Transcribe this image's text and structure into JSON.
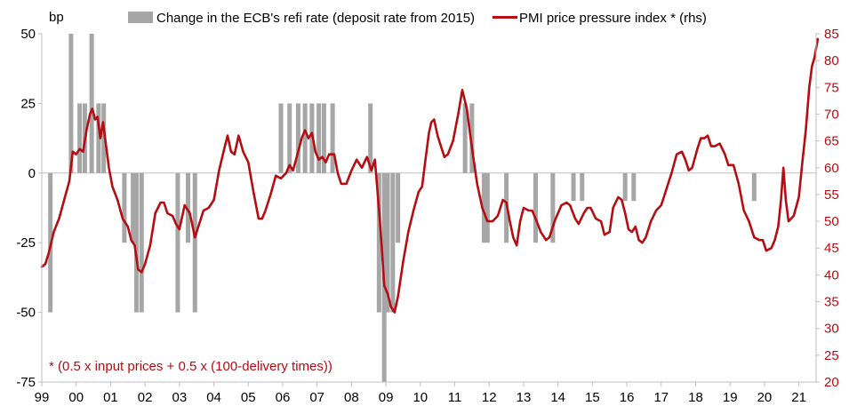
{
  "colors": {
    "bar": "#a6a6a6",
    "line": "#b50d12",
    "text": "#000000",
    "rhs_text": "#b50d12",
    "grid": "#bfbfbf"
  },
  "chart_data": {
    "type": "bar+line",
    "title": "",
    "left_axis": {
      "unit_label": "bp",
      "ylim": [
        -75,
        50
      ],
      "ticks": [
        50,
        25,
        0,
        -25,
        -50,
        -75
      ]
    },
    "right_axis": {
      "label": "(rhs)",
      "ylim": [
        20,
        85
      ],
      "ticks": [
        85,
        80,
        75,
        70,
        65,
        60,
        55,
        50,
        45,
        40,
        35,
        30,
        25,
        20
      ]
    },
    "x_axis": {
      "ticks": [
        {
          "label": "99",
          "year": 1999.0
        },
        {
          "label": "00",
          "year": 2000.0
        },
        {
          "label": "01",
          "year": 2001.0
        },
        {
          "label": "02",
          "year": 2002.0
        },
        {
          "label": "03",
          "year": 2003.0
        },
        {
          "label": "04",
          "year": 2004.0
        },
        {
          "label": "05",
          "year": 2005.0
        },
        {
          "label": "06",
          "year": 2006.0
        },
        {
          "label": "07",
          "year": 2007.0
        },
        {
          "label": "08",
          "year": 2008.0
        },
        {
          "label": "09",
          "year": 2009.0
        },
        {
          "label": "10",
          "year": 2010.0
        },
        {
          "label": "11",
          "year": 2011.0
        },
        {
          "label": "12",
          "year": 2012.0
        },
        {
          "label": "13",
          "year": 2013.0
        },
        {
          "label": "14",
          "year": 2014.0
        },
        {
          "label": "15",
          "year": 2015.0
        },
        {
          "label": "16",
          "year": 2016.0
        },
        {
          "label": "17",
          "year": 2017.0
        },
        {
          "label": "18",
          "year": 2018.0
        },
        {
          "label": "19",
          "year": 2019.0
        },
        {
          "label": "20",
          "year": 2020.0
        },
        {
          "label": "21",
          "year": 2021.0
        }
      ],
      "xlim": [
        1999.0,
        2021.5
      ]
    },
    "series": [
      {
        "name": "Change in the ECB's refi rate (deposit rate from 2015)",
        "type": "bar",
        "axis": "left",
        "points": [
          {
            "x": 1999.25,
            "v": -50
          },
          {
            "x": 1999.85,
            "v": 50
          },
          {
            "x": 2000.1,
            "v": 25
          },
          {
            "x": 2000.25,
            "v": 25
          },
          {
            "x": 2000.45,
            "v": 50
          },
          {
            "x": 2000.65,
            "v": 25
          },
          {
            "x": 2000.8,
            "v": 25
          },
          {
            "x": 2001.4,
            "v": -25
          },
          {
            "x": 2001.65,
            "v": -25
          },
          {
            "x": 2001.75,
            "v": -50
          },
          {
            "x": 2001.9,
            "v": -50
          },
          {
            "x": 2002.95,
            "v": -50
          },
          {
            "x": 2003.25,
            "v": -25
          },
          {
            "x": 2003.45,
            "v": -50
          },
          {
            "x": 2005.95,
            "v": 25
          },
          {
            "x": 2006.2,
            "v": 25
          },
          {
            "x": 2006.45,
            "v": 25
          },
          {
            "x": 2006.65,
            "v": 25
          },
          {
            "x": 2006.85,
            "v": 25
          },
          {
            "x": 2007.05,
            "v": 25
          },
          {
            "x": 2007.2,
            "v": 25
          },
          {
            "x": 2007.45,
            "v": 25
          },
          {
            "x": 2008.55,
            "v": 25
          },
          {
            "x": 2008.8,
            "v": -50
          },
          {
            "x": 2008.95,
            "v": -75
          },
          {
            "x": 2009.05,
            "v": -50
          },
          {
            "x": 2009.2,
            "v": -50
          },
          {
            "x": 2009.35,
            "v": -25
          },
          {
            "x": 2011.3,
            "v": 25
          },
          {
            "x": 2011.5,
            "v": 25
          },
          {
            "x": 2011.85,
            "v": -25
          },
          {
            "x": 2011.95,
            "v": -25
          },
          {
            "x": 2012.5,
            "v": -25
          },
          {
            "x": 2013.35,
            "v": -25
          },
          {
            "x": 2013.85,
            "v": -25
          },
          {
            "x": 2014.45,
            "v": -10
          },
          {
            "x": 2014.7,
            "v": -10
          },
          {
            "x": 2015.95,
            "v": -10
          },
          {
            "x": 2016.2,
            "v": -10
          },
          {
            "x": 2019.7,
            "v": -10
          }
        ]
      },
      {
        "name": "PMI price pressure index * (rhs)",
        "type": "line",
        "axis": "right",
        "points": [
          [
            1999.0,
            41.5
          ],
          [
            1999.1,
            42
          ],
          [
            1999.2,
            44
          ],
          [
            1999.35,
            48
          ],
          [
            1999.5,
            50.5
          ],
          [
            1999.65,
            54
          ],
          [
            1999.8,
            57.5
          ],
          [
            1999.9,
            63
          ],
          [
            2000.0,
            62.5
          ],
          [
            2000.1,
            63.5
          ],
          [
            2000.2,
            63
          ],
          [
            2000.3,
            67
          ],
          [
            2000.4,
            70
          ],
          [
            2000.47,
            71
          ],
          [
            2000.55,
            69
          ],
          [
            2000.62,
            69.5
          ],
          [
            2000.7,
            65.5
          ],
          [
            2000.78,
            68.5
          ],
          [
            2000.85,
            65
          ],
          [
            2000.95,
            60
          ],
          [
            2001.05,
            56.5
          ],
          [
            2001.2,
            54
          ],
          [
            2001.35,
            50.5
          ],
          [
            2001.5,
            49
          ],
          [
            2001.6,
            46.5
          ],
          [
            2001.7,
            45.5
          ],
          [
            2001.8,
            41
          ],
          [
            2001.9,
            40.5
          ],
          [
            2002.0,
            42
          ],
          [
            2002.15,
            45.5
          ],
          [
            2002.3,
            51.5
          ],
          [
            2002.45,
            53.5
          ],
          [
            2002.55,
            53.5
          ],
          [
            2002.65,
            51.5
          ],
          [
            2002.8,
            51
          ],
          [
            2002.9,
            49.5
          ],
          [
            2003.0,
            48.5
          ],
          [
            2003.15,
            53
          ],
          [
            2003.3,
            51.5
          ],
          [
            2003.45,
            47
          ],
          [
            2003.55,
            49
          ],
          [
            2003.7,
            52
          ],
          [
            2003.85,
            52.5
          ],
          [
            2004.0,
            54
          ],
          [
            2004.15,
            59.5
          ],
          [
            2004.3,
            63.5
          ],
          [
            2004.4,
            66
          ],
          [
            2004.5,
            63
          ],
          [
            2004.6,
            62.5
          ],
          [
            2004.72,
            66
          ],
          [
            2004.85,
            63
          ],
          [
            2005.0,
            61
          ],
          [
            2005.15,
            55.5
          ],
          [
            2005.3,
            50.5
          ],
          [
            2005.4,
            50.5
          ],
          [
            2005.5,
            52
          ],
          [
            2005.65,
            55
          ],
          [
            2005.8,
            58.5
          ],
          [
            2005.95,
            58
          ],
          [
            2006.1,
            59
          ],
          [
            2006.2,
            60.5
          ],
          [
            2006.3,
            59.5
          ],
          [
            2006.45,
            63
          ],
          [
            2006.55,
            65.5
          ],
          [
            2006.65,
            67
          ],
          [
            2006.75,
            65.5
          ],
          [
            2006.85,
            66.5
          ],
          [
            2006.95,
            63
          ],
          [
            2007.05,
            61.5
          ],
          [
            2007.15,
            62
          ],
          [
            2007.25,
            61
          ],
          [
            2007.35,
            62.5
          ],
          [
            2007.5,
            62.5
          ],
          [
            2007.6,
            59
          ],
          [
            2007.7,
            57
          ],
          [
            2007.85,
            57
          ],
          [
            2008.0,
            59.5
          ],
          [
            2008.15,
            61.5
          ],
          [
            2008.3,
            60
          ],
          [
            2008.45,
            62
          ],
          [
            2008.58,
            59.5
          ],
          [
            2008.68,
            61.5
          ],
          [
            2008.8,
            52
          ],
          [
            2008.88,
            45
          ],
          [
            2008.95,
            38
          ],
          [
            2009.05,
            36.5
          ],
          [
            2009.15,
            34
          ],
          [
            2009.25,
            33
          ],
          [
            2009.35,
            36
          ],
          [
            2009.5,
            42.5
          ],
          [
            2009.65,
            48
          ],
          [
            2009.8,
            52
          ],
          [
            2009.95,
            55.5
          ],
          [
            2010.05,
            56.5
          ],
          [
            2010.15,
            61.5
          ],
          [
            2010.25,
            66.5
          ],
          [
            2010.32,
            68.5
          ],
          [
            2010.4,
            69
          ],
          [
            2010.5,
            66
          ],
          [
            2010.6,
            64
          ],
          [
            2010.7,
            62
          ],
          [
            2010.8,
            62.5
          ],
          [
            2010.95,
            65
          ],
          [
            2011.1,
            70
          ],
          [
            2011.22,
            74.5
          ],
          [
            2011.35,
            71
          ],
          [
            2011.45,
            66
          ],
          [
            2011.55,
            61.5
          ],
          [
            2011.65,
            57
          ],
          [
            2011.8,
            52.5
          ],
          [
            2011.95,
            50
          ],
          [
            2012.1,
            50
          ],
          [
            2012.25,
            51
          ],
          [
            2012.4,
            54
          ],
          [
            2012.5,
            53.5
          ],
          [
            2012.6,
            50
          ],
          [
            2012.7,
            47
          ],
          [
            2012.8,
            45.5
          ],
          [
            2012.9,
            50
          ],
          [
            2013.0,
            52.5
          ],
          [
            2013.15,
            52
          ],
          [
            2013.25,
            52
          ],
          [
            2013.35,
            50.5
          ],
          [
            2013.5,
            48
          ],
          [
            2013.65,
            46.5
          ],
          [
            2013.75,
            47
          ],
          [
            2013.9,
            50
          ],
          [
            2014.1,
            53
          ],
          [
            2014.25,
            53.5
          ],
          [
            2014.35,
            53
          ],
          [
            2014.5,
            50.5
          ],
          [
            2014.6,
            49.5
          ],
          [
            2014.75,
            51.5
          ],
          [
            2014.85,
            52.5
          ],
          [
            2014.95,
            52.5
          ],
          [
            2015.1,
            50.5
          ],
          [
            2015.25,
            50
          ],
          [
            2015.35,
            47.5
          ],
          [
            2015.5,
            48
          ],
          [
            2015.6,
            52.5
          ],
          [
            2015.75,
            54.5
          ],
          [
            2015.85,
            54
          ],
          [
            2015.95,
            51.5
          ],
          [
            2016.05,
            48.5
          ],
          [
            2016.15,
            48
          ],
          [
            2016.25,
            49
          ],
          [
            2016.35,
            46.5
          ],
          [
            2016.45,
            46
          ],
          [
            2016.55,
            47
          ],
          [
            2016.7,
            50
          ],
          [
            2016.85,
            52
          ],
          [
            2017.0,
            53
          ],
          [
            2017.15,
            56
          ],
          [
            2017.3,
            59
          ],
          [
            2017.45,
            62.5
          ],
          [
            2017.6,
            63
          ],
          [
            2017.7,
            61.5
          ],
          [
            2017.8,
            59.5
          ],
          [
            2017.9,
            60
          ],
          [
            2018.05,
            63.5
          ],
          [
            2018.15,
            65.5
          ],
          [
            2018.25,
            65.5
          ],
          [
            2018.35,
            66
          ],
          [
            2018.45,
            64
          ],
          [
            2018.55,
            64
          ],
          [
            2018.7,
            64.5
          ],
          [
            2018.85,
            62.5
          ],
          [
            2018.95,
            60.5
          ],
          [
            2019.1,
            60.5
          ],
          [
            2019.25,
            57
          ],
          [
            2019.4,
            52
          ],
          [
            2019.55,
            50
          ],
          [
            2019.7,
            47
          ],
          [
            2019.85,
            46.5
          ],
          [
            2019.95,
            46.5
          ],
          [
            2020.05,
            44.5
          ],
          [
            2020.2,
            45
          ],
          [
            2020.3,
            46.5
          ],
          [
            2020.4,
            49
          ],
          [
            2020.48,
            54
          ],
          [
            2020.55,
            60
          ],
          [
            2020.62,
            54
          ],
          [
            2020.7,
            50
          ],
          [
            2020.85,
            51
          ],
          [
            2021.0,
            54.5
          ],
          [
            2021.1,
            61
          ],
          [
            2021.2,
            67
          ],
          [
            2021.3,
            75
          ],
          [
            2021.38,
            79
          ],
          [
            2021.45,
            80.5
          ],
          [
            2021.55,
            84
          ]
        ]
      }
    ],
    "legend": {
      "placement": "top",
      "items": [
        {
          "label": "Change in the ECB's refi rate (deposit rate from 2015)",
          "swatch": "bar"
        },
        {
          "label": "PMI price pressure index * (rhs)",
          "swatch": "line"
        }
      ]
    },
    "annotation": "* (0.5 x input prices + 0.5 x (100-delivery times))",
    "gridlines": false,
    "zero_line": true
  }
}
